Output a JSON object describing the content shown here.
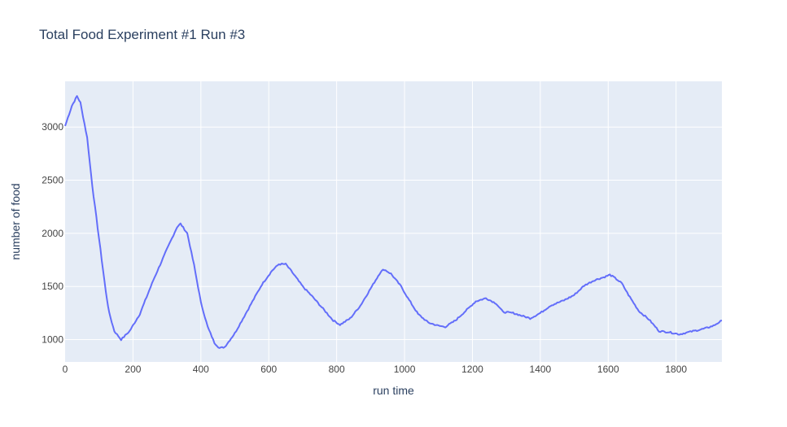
{
  "chart_data": {
    "type": "line",
    "title": "Total Food Experiment #1 Run #3",
    "xlabel": "run time",
    "ylabel": "number of food",
    "xlim": [
      0,
      1935
    ],
    "ylim": [
      790,
      3430
    ],
    "x_ticks": [
      0,
      200,
      400,
      600,
      800,
      1000,
      1200,
      1400,
      1600,
      1800
    ],
    "y_ticks": [
      1000,
      1500,
      2000,
      2500,
      3000
    ],
    "grid": true,
    "plot_bgcolor": "#E5ECF6",
    "series": [
      {
        "color": "#636EFA",
        "points": [
          [
            0,
            3010
          ],
          [
            20,
            3200
          ],
          [
            35,
            3290
          ],
          [
            45,
            3230
          ],
          [
            65,
            2900
          ],
          [
            80,
            2450
          ],
          [
            100,
            1950
          ],
          [
            120,
            1450
          ],
          [
            130,
            1250
          ],
          [
            145,
            1080
          ],
          [
            165,
            1000
          ],
          [
            190,
            1080
          ],
          [
            220,
            1240
          ],
          [
            260,
            1560
          ],
          [
            300,
            1850
          ],
          [
            330,
            2060
          ],
          [
            340,
            2090
          ],
          [
            360,
            2000
          ],
          [
            380,
            1700
          ],
          [
            400,
            1350
          ],
          [
            420,
            1120
          ],
          [
            440,
            970
          ],
          [
            455,
            920
          ],
          [
            470,
            930
          ],
          [
            500,
            1060
          ],
          [
            540,
            1290
          ],
          [
            580,
            1520
          ],
          [
            610,
            1650
          ],
          [
            630,
            1710
          ],
          [
            650,
            1710
          ],
          [
            670,
            1630
          ],
          [
            700,
            1500
          ],
          [
            730,
            1400
          ],
          [
            760,
            1290
          ],
          [
            790,
            1180
          ],
          [
            810,
            1140
          ],
          [
            840,
            1200
          ],
          [
            870,
            1320
          ],
          [
            900,
            1480
          ],
          [
            930,
            1640
          ],
          [
            940,
            1660
          ],
          [
            960,
            1620
          ],
          [
            990,
            1500
          ],
          [
            1010,
            1390
          ],
          [
            1040,
            1240
          ],
          [
            1070,
            1160
          ],
          [
            1100,
            1130
          ],
          [
            1120,
            1120
          ],
          [
            1150,
            1180
          ],
          [
            1180,
            1270
          ],
          [
            1210,
            1360
          ],
          [
            1240,
            1390
          ],
          [
            1270,
            1340
          ],
          [
            1290,
            1260
          ],
          [
            1320,
            1250
          ],
          [
            1350,
            1220
          ],
          [
            1370,
            1200
          ],
          [
            1400,
            1250
          ],
          [
            1430,
            1320
          ],
          [
            1470,
            1370
          ],
          [
            1500,
            1420
          ],
          [
            1530,
            1510
          ],
          [
            1560,
            1560
          ],
          [
            1590,
            1590
          ],
          [
            1605,
            1610
          ],
          [
            1620,
            1580
          ],
          [
            1640,
            1530
          ],
          [
            1660,
            1420
          ],
          [
            1690,
            1270
          ],
          [
            1720,
            1190
          ],
          [
            1750,
            1080
          ],
          [
            1780,
            1070
          ],
          [
            1810,
            1050
          ],
          [
            1850,
            1080
          ],
          [
            1880,
            1100
          ],
          [
            1910,
            1130
          ],
          [
            1935,
            1180
          ]
        ]
      }
    ]
  }
}
